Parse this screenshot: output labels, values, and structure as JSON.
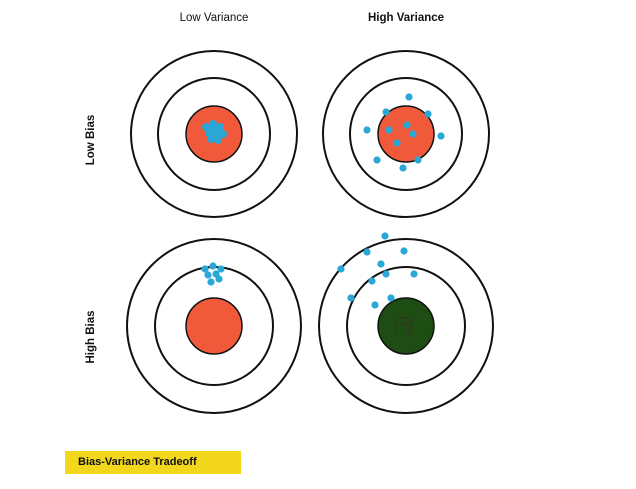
{
  "columns": {
    "low": "Low Variance",
    "high": "High Variance"
  },
  "rows": {
    "low": "Low Bias",
    "high": "High Bias"
  },
  "caption": "Bias-Variance Tradeoff",
  "colors": {
    "ring": "#111111",
    "bullseye": "#f05a3a",
    "bullseye_dark": "#1e4d14",
    "shot": "#29a7d6",
    "caption_bg": "#f2d71d"
  }
}
